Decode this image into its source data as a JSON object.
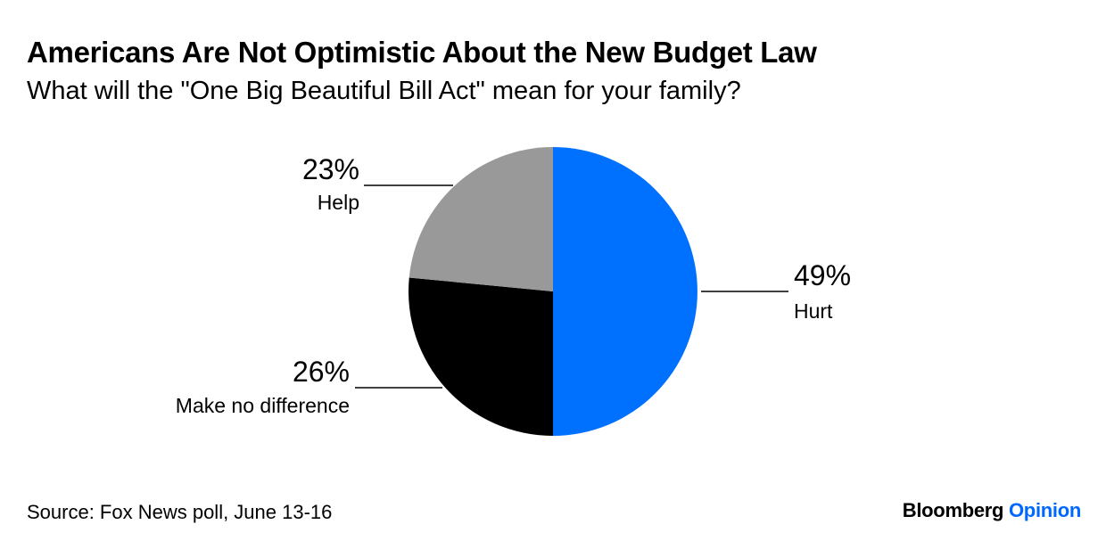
{
  "title": "Americans Are Not Optimistic About the New Budget Law",
  "subtitle": "What will the \"One Big Beautiful Bill Act\" mean for your family?",
  "source": "Source: Fox News poll, June 13-16",
  "brand": {
    "name": "Bloomberg",
    "section": "Opinion"
  },
  "colors": {
    "hurt": "#0070ff",
    "make_no_difference": "#000000",
    "help": "#999999",
    "brand_accent": "#0068ff"
  },
  "chart_data": {
    "type": "pie",
    "title": "Americans Are Not Optimistic About the New Budget Law",
    "subtitle": "What will the \"One Big Beautiful Bill Act\" mean for your family?",
    "start_angle_deg": 0,
    "direction": "clockwise",
    "slices": [
      {
        "label": "Hurt",
        "value": 49,
        "display": "49%",
        "color": "#0070ff"
      },
      {
        "label": "Make no difference",
        "value": 26,
        "display": "26%",
        "color": "#000000"
      },
      {
        "label": "Help",
        "value": 23,
        "display": "23%",
        "color": "#999999"
      }
    ]
  }
}
